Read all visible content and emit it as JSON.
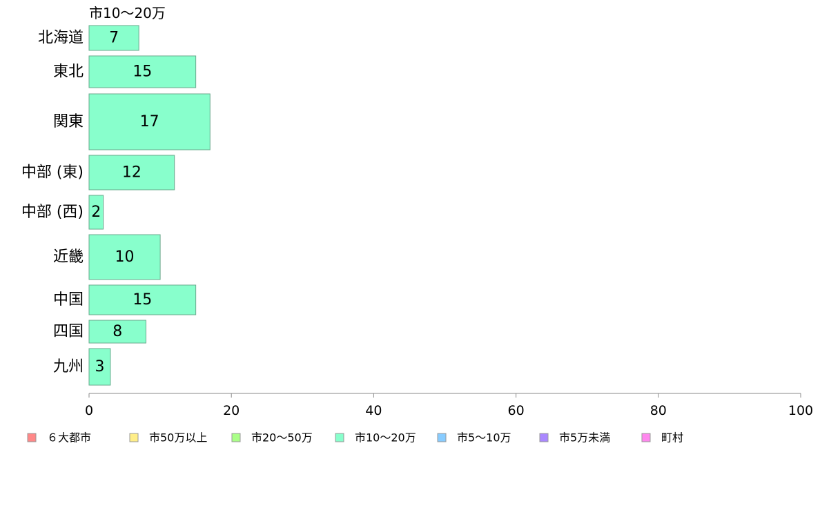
{
  "chart_data": {
    "type": "bar",
    "orientation": "horizontal",
    "title": "市10〜20万",
    "categories": [
      "北海道",
      "東北",
      "関東",
      "中部 (東)",
      "中部 (西)",
      "近畿",
      "中国",
      "四国",
      "九州"
    ],
    "series": [
      {
        "name": "市10〜20万",
        "values": [
          7,
          15,
          17,
          12,
          2,
          10,
          15,
          8,
          3
        ],
        "color": "#88ffcc"
      }
    ],
    "value_labels": [
      "7",
      "15",
      "17",
      "12",
      "2",
      "10",
      "15",
      "8",
      "3"
    ],
    "xlim": [
      0,
      100
    ],
    "xticks": [
      0,
      20,
      40,
      60,
      80,
      100
    ],
    "xtick_labels": [
      "0",
      "20",
      "40",
      "60",
      "80",
      "100"
    ],
    "grid": false,
    "legend_position": "bottom",
    "legend": [
      {
        "label": "６大都市",
        "color": "#ff8888"
      },
      {
        "label": "市50万以上",
        "color": "#ffee88"
      },
      {
        "label": "市20〜50万",
        "color": "#aaff88"
      },
      {
        "label": "市10〜20万",
        "color": "#88ffcc"
      },
      {
        "label": "市5〜10万",
        "color": "#88ccff"
      },
      {
        "label": "市5万未満",
        "color": "#aa88ff"
      },
      {
        "label": "町村",
        "color": "#ff88ee"
      }
    ]
  }
}
